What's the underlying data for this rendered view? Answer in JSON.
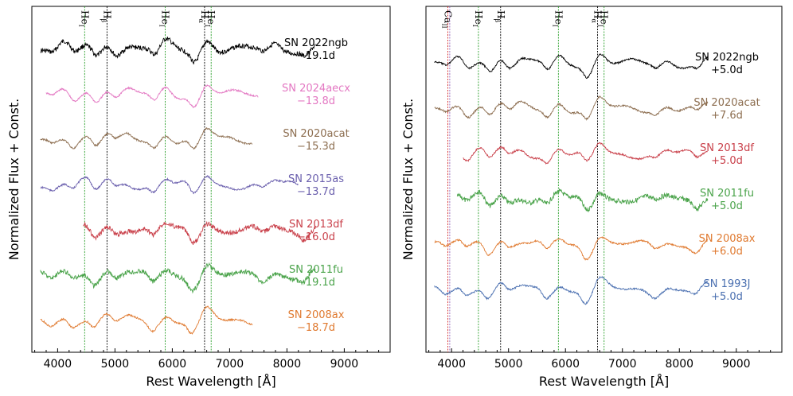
{
  "chart_data": [
    {
      "type": "line",
      "panel": "left",
      "xlabel": "Rest Wavelength [Å]",
      "ylabel": "Normalized Flux + Const.",
      "xlim": [
        3550,
        9800
      ],
      "xticks": [
        4000,
        5000,
        6000,
        7000,
        8000,
        9000
      ],
      "xtick_labels": [
        "4000",
        "5000",
        "6000",
        "7000",
        "8000",
        "9000"
      ],
      "grid": false,
      "line_markers": [
        {
          "label_main": "He",
          "label_sub": "I",
          "x": 4471,
          "color": "#2ca02c"
        },
        {
          "label_main": "H",
          "label_sub": "β",
          "x": 4861,
          "color": "#000000"
        },
        {
          "label_main": "He",
          "label_sub": "I",
          "x": 5876,
          "color": "#2ca02c"
        },
        {
          "label_main": "H",
          "label_sub": "α",
          "x": 6563,
          "color": "#000000"
        },
        {
          "label_main": "He",
          "label_sub": "I",
          "x": 6678,
          "color": "#2ca02c"
        }
      ],
      "series": [
        {
          "name": "SN 2022ngb",
          "phase": "−19.1d",
          "color": "#000000",
          "xmin": 3700,
          "xmax": 8500,
          "offset": 0.0
        },
        {
          "name": "SN 2024aecx",
          "phase": "−13.8d",
          "color": "#e377c2",
          "xmin": 3800,
          "xmax": 7500,
          "offset": 1.0
        },
        {
          "name": "SN 2020acat",
          "phase": "−15.3d",
          "color": "#8c6d4f",
          "xmin": 3700,
          "xmax": 7400,
          "offset": 2.0
        },
        {
          "name": "SN 2015as",
          "phase": "−13.7d",
          "color": "#6a5fad",
          "xmin": 3700,
          "xmax": 8200,
          "offset": 3.0
        },
        {
          "name": "SN 2013df",
          "phase": "−16.0d",
          "color": "#c9404a",
          "xmin": 4450,
          "xmax": 8500,
          "offset": 4.0
        },
        {
          "name": "SN 2011fu",
          "phase": "−19.1d",
          "color": "#4aa34a",
          "xmin": 3700,
          "xmax": 8500,
          "offset": 5.0
        },
        {
          "name": "SN 2008ax",
          "phase": "−18.7d",
          "color": "#e07a30",
          "xmin": 3700,
          "xmax": 7400,
          "offset": 6.0
        }
      ]
    },
    {
      "type": "line",
      "panel": "right",
      "xlabel": "Rest Wavelength [Å]",
      "ylabel": "Normalized Flux + Const.",
      "xlim": [
        3550,
        9800
      ],
      "xticks": [
        4000,
        5000,
        6000,
        7000,
        8000,
        9000
      ],
      "xtick_labels": [
        "4000",
        "5000",
        "6000",
        "7000",
        "8000",
        "9000"
      ],
      "grid": false,
      "line_markers": [
        {
          "label_main": "Ca",
          "label_sub": "II",
          "x": 3934,
          "color": "#d62728"
        },
        {
          "label_main": "",
          "label_sub": "",
          "x": 3968,
          "color": "#9467bd"
        },
        {
          "label_main": "He",
          "label_sub": "I",
          "x": 4471,
          "color": "#2ca02c"
        },
        {
          "label_main": "H",
          "label_sub": "β",
          "x": 4861,
          "color": "#000000"
        },
        {
          "label_main": "He",
          "label_sub": "I",
          "x": 5876,
          "color": "#2ca02c"
        },
        {
          "label_main": "H",
          "label_sub": "α",
          "x": 6563,
          "color": "#000000"
        },
        {
          "label_main": "He",
          "label_sub": "I",
          "x": 6678,
          "color": "#2ca02c"
        }
      ],
      "series": [
        {
          "name": "SN 2022ngb",
          "phase": "+5.0d",
          "color": "#000000",
          "xmin": 3700,
          "xmax": 8500,
          "offset": 0.0
        },
        {
          "name": "SN 2020acat",
          "phase": "+7.6d",
          "color": "#8c6d4f",
          "xmin": 3700,
          "xmax": 8500,
          "offset": 1.0
        },
        {
          "name": "SN 2013df",
          "phase": "+5.0d",
          "color": "#c9404a",
          "xmin": 4200,
          "xmax": 8500,
          "offset": 2.0
        },
        {
          "name": "SN 2011fu",
          "phase": "+5.0d",
          "color": "#4aa34a",
          "xmin": 4100,
          "xmax": 8500,
          "offset": 3.0
        },
        {
          "name": "SN 2008ax",
          "phase": "+6.0d",
          "color": "#e07a30",
          "xmin": 3700,
          "xmax": 8500,
          "offset": 4.0
        },
        {
          "name": "SN 1993J",
          "phase": "+5.0d",
          "color": "#4a6fb0",
          "xmin": 3700,
          "xmax": 8500,
          "offset": 5.0
        }
      ]
    }
  ]
}
